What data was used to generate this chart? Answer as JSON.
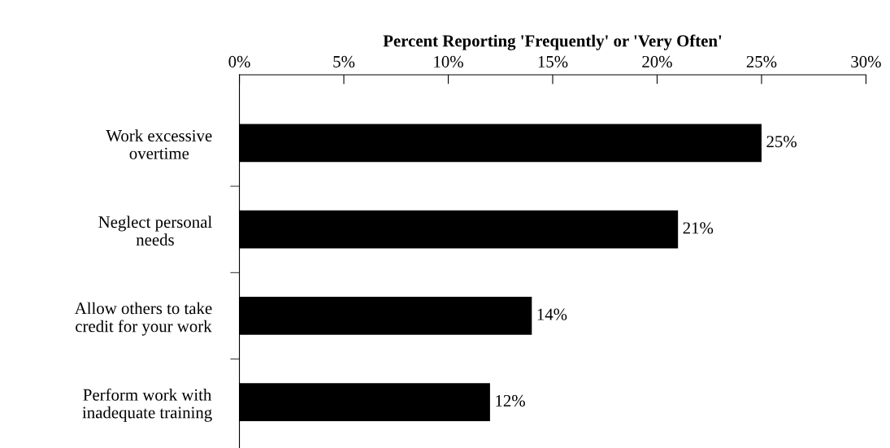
{
  "chart_data": {
    "type": "bar",
    "orientation": "horizontal",
    "xlabel": "Percent Reporting 'Frequently' or 'Very Often'",
    "categories": [
      "Work excessive\novertime",
      "Neglect personal\nneeds",
      "Allow others to take\ncredit for your work",
      "Perform work with\ninadequate training"
    ],
    "values": [
      25,
      21,
      14,
      12
    ],
    "color": "#000000",
    "value_labels": [
      "25%",
      "21%",
      "14%",
      "12%"
    ],
    "xlim": [
      0,
      30
    ],
    "xticks": [
      {
        "value": 0,
        "label": "0%"
      },
      {
        "value": 5,
        "label": "5%"
      },
      {
        "value": 10,
        "label": "10%"
      },
      {
        "value": 15,
        "label": "15%"
      },
      {
        "value": 20,
        "label": "20%"
      },
      {
        "value": 25,
        "label": "25%"
      },
      {
        "value": 30,
        "label": "30%"
      }
    ],
    "grid": false,
    "legend": false
  }
}
